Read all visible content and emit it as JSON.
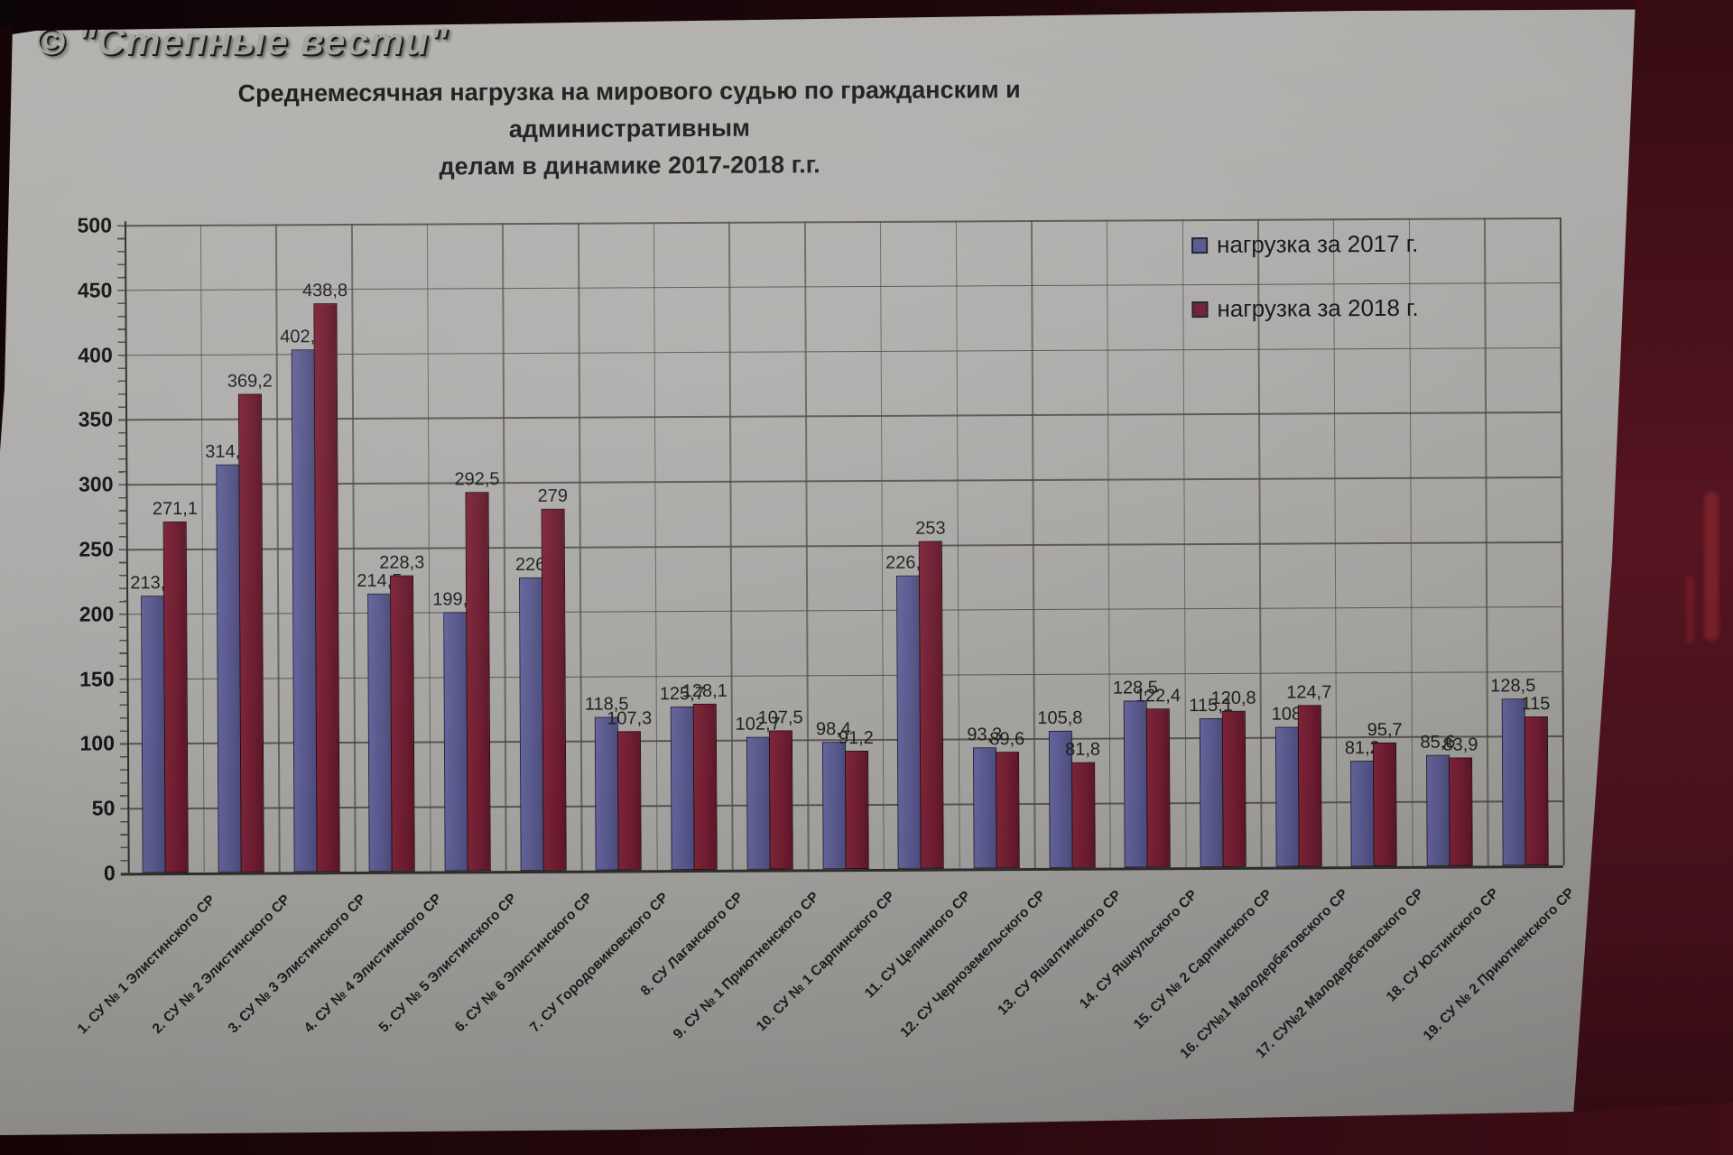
{
  "watermark": "© \"Степные вести\"",
  "title_display": {
    "line1": "Среднемесячная нагрузка на мирового судью по гражданским и административным",
    "line2": "делам  в динамике 2017-2018 г.г."
  },
  "chart_data": {
    "type": "bar",
    "title": "Среднемесячная нагрузка на мирового судью по гражданским и административным делам  в динамике 2017-2018 г.г.",
    "categories": [
      "1. СУ № 1 Элистинского СР",
      "2. СУ № 2 Элистинского СР",
      "3. СУ № 3 Элистинского СР",
      "4. СУ № 4 Элистинского СР",
      "5. СУ № 5 Элистинского СР",
      "6. СУ № 6 Элистинского СР",
      "7. СУ Городовиковского СР",
      "8. СУ Лаганского СР",
      "9. СУ № 1 Приютненского СР",
      "10. СУ № 1 Сарпинского СР",
      "11. СУ Целинного СР",
      "12. СУ Черноземельского СР",
      "13. СУ Яшалтинского СР",
      "14. СУ Яшкульского СР",
      "15. СУ № 2 Сарпинского СР",
      "16. СУ№1 Малодербетовского СР",
      "17. СУ№2 Малодербетовского СР",
      "18. СУ Юстинского СР",
      "19. СУ № 2 Приютненского СР"
    ],
    "series": [
      {
        "name": "нагрузка за 2017 г.",
        "color": "#56568a",
        "values": [
          213.8,
          314.7,
          402.9,
          214.5,
          199.6,
          226,
          118.5,
          125.7,
          102.7,
          98.4,
          226.6,
          93.3,
          105.8,
          128.5,
          115.1,
          108,
          81.2,
          85.6,
          128.5
        ]
      },
      {
        "name": "нагрузка за 2018 г.",
        "color": "#6d1c2f",
        "values": [
          271.1,
          369.2,
          438.8,
          228.3,
          292.5,
          279,
          107.3,
          128.1,
          107.5,
          91.2,
          253,
          89.6,
          81.8,
          122.4,
          120.8,
          124.7,
          95.7,
          83.9,
          115
        ]
      }
    ],
    "ylim": [
      0,
      500
    ],
    "ytick_step": 50,
    "ytick_labels": [
      "0",
      "50",
      "100",
      "150",
      "200",
      "250",
      "300",
      "350",
      "400",
      "450",
      "500"
    ],
    "grid": true,
    "legend_position": "top-right",
    "decimal_separator": ","
  },
  "colors": {
    "paper": "#adacaa",
    "backdrop": "#3f0e16",
    "series_2017": "#56568a",
    "series_2018": "#6d1c2f",
    "grid_line": "#4a4742",
    "text": "#1d1d1d"
  }
}
